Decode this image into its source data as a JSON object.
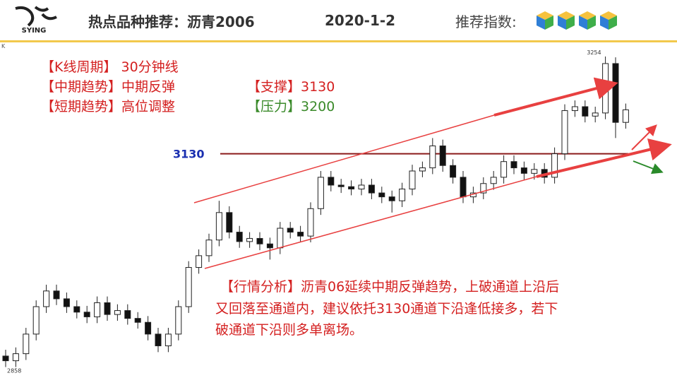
{
  "header": {
    "logo": "SYING",
    "title": "热点品种推荐：沥青2006",
    "date": "2020-1-2",
    "rating_label": "推荐指数:"
  },
  "chart_data": {
    "type": "candlestick",
    "axis_label": "K",
    "up_color": "#ffffff",
    "down_color": "#111111",
    "outline_color": "#222222",
    "ylim": [
      2844,
      3272
    ],
    "open": [
      2872,
      2866,
      2875,
      2900,
      2935,
      2955,
      2945,
      2935,
      2928,
      2922,
      2940,
      2925,
      2930,
      2920,
      2915,
      2900,
      2885,
      2900,
      2935,
      2985,
      3000,
      3020,
      3055,
      3030,
      3018,
      3022,
      3015,
      3010,
      3035,
      3030,
      3025,
      3060,
      3100,
      3090,
      3088,
      3085,
      3090,
      3080,
      3075,
      3070,
      3085,
      3108,
      3112,
      3140,
      3115,
      3100,
      3075,
      3080,
      3092,
      3100,
      3120,
      3112,
      3105,
      3110,
      3100,
      3130,
      3185,
      3190,
      3178,
      3182,
      3245,
      3170
    ],
    "high": [
      2880,
      2883,
      2908,
      2943,
      2963,
      2963,
      2953,
      2943,
      2936,
      2948,
      2948,
      2938,
      2938,
      2928,
      2923,
      2908,
      2908,
      2943,
      2993,
      3008,
      3028,
      3070,
      3063,
      3038,
      3030,
      3030,
      3023,
      3043,
      3043,
      3038,
      3068,
      3108,
      3108,
      3098,
      3096,
      3098,
      3098,
      3088,
      3083,
      3093,
      3116,
      3120,
      3150,
      3148,
      3123,
      3108,
      3088,
      3100,
      3108,
      3128,
      3128,
      3120,
      3118,
      3118,
      3138,
      3193,
      3198,
      3198,
      3190,
      3254,
      3253,
      3194
    ],
    "low": [
      2858,
      2858,
      2867,
      2892,
      2927,
      2937,
      2927,
      2920,
      2914,
      2914,
      2917,
      2917,
      2912,
      2907,
      2892,
      2877,
      2877,
      2892,
      2927,
      2977,
      2992,
      3012,
      3022,
      3010,
      3010,
      3007,
      2995,
      3002,
      3022,
      3017,
      3017,
      3052,
      3082,
      3080,
      3077,
      3077,
      3072,
      3067,
      3055,
      3062,
      3077,
      3100,
      3104,
      3107,
      3092,
      3067,
      3067,
      3072,
      3084,
      3092,
      3104,
      3097,
      3097,
      3092,
      3092,
      3122,
      3177,
      3170,
      3170,
      3174,
      3150,
      3162
    ],
    "close": [
      2866,
      2875,
      2900,
      2935,
      2955,
      2945,
      2935,
      2928,
      2922,
      2940,
      2925,
      2930,
      2920,
      2915,
      2900,
      2885,
      2900,
      2935,
      2985,
      3000,
      3020,
      3055,
      3030,
      3018,
      3022,
      3015,
      3010,
      3035,
      3030,
      3025,
      3060,
      3100,
      3090,
      3088,
      3085,
      3090,
      3080,
      3075,
      3070,
      3085,
      3108,
      3112,
      3140,
      3115,
      3100,
      3075,
      3080,
      3092,
      3100,
      3120,
      3112,
      3105,
      3110,
      3100,
      3130,
      3185,
      3190,
      3178,
      3182,
      3245,
      3170,
      3186
    ],
    "high_mark_index": 59,
    "low_mark_index": 0,
    "hline": {
      "value": 3130,
      "color": "#8b1a1a",
      "label_color": "#1a2fb0"
    }
  },
  "notes": {
    "left": [
      "【K线周期】 30分钟线",
      "【中期趋势】中期反弹",
      "【短期趋势】高位调整"
    ],
    "support": "【支撑】3130",
    "resistance": "【压力】3200",
    "analysis": [
      "【行情分析】沥青06延续中期反弹趋势，上破通道上沿后",
      "又回落至通道内，建议依托3130通道下沿逢低接多，若下",
      "破通道下沿则多单离场。"
    ]
  }
}
